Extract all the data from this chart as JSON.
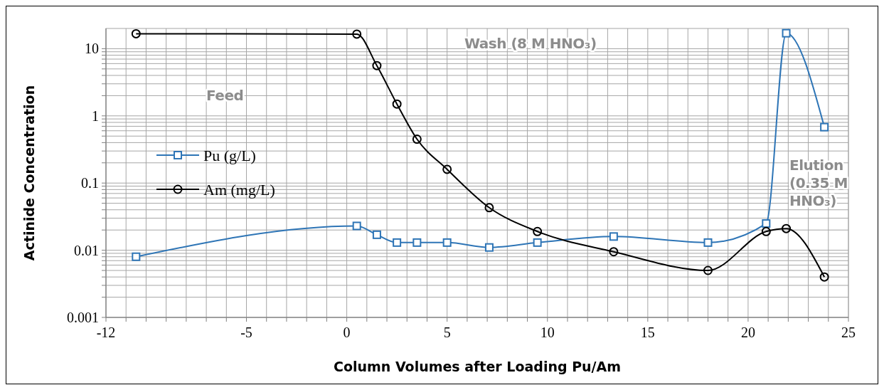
{
  "chart_data": {
    "type": "line",
    "xlabel": "Column Volumes after Loading Pu/Am",
    "ylabel": "Actinide Concentration",
    "xlim": [
      -12,
      25
    ],
    "xticks": [
      -12,
      {
        "value": -11,
        "label": null
      },
      {
        "value": -10,
        "label": null
      },
      {
        "value": -9,
        "label": null
      },
      {
        "value": -8,
        "label": null
      },
      {
        "value": -7,
        "label": null
      },
      {
        "value": -6,
        "label": null
      },
      -5,
      {
        "value": -4,
        "label": null
      },
      {
        "value": -3,
        "label": null
      },
      {
        "value": -2,
        "label": null
      },
      {
        "value": -1,
        "label": null
      },
      0,
      {
        "value": 1,
        "label": null
      },
      {
        "value": 2,
        "label": null
      },
      {
        "value": 3,
        "label": null
      },
      {
        "value": 4,
        "label": null
      },
      5,
      {
        "value": 6,
        "label": null
      },
      {
        "value": 7,
        "label": null
      },
      {
        "value": 8,
        "label": null
      },
      {
        "value": 9,
        "label": null
      },
      10,
      {
        "value": 11,
        "label": null
      },
      {
        "value": 12,
        "label": null
      },
      {
        "value": 13,
        "label": null
      },
      {
        "value": 14,
        "label": null
      },
      15,
      {
        "value": 16,
        "label": null
      },
      {
        "value": 17,
        "label": null
      },
      {
        "value": 18,
        "label": null
      },
      {
        "value": 19,
        "label": null
      },
      20,
      {
        "value": 21,
        "label": null
      },
      {
        "value": 22,
        "label": null
      },
      {
        "value": 23,
        "label": null
      },
      {
        "value": 24,
        "label": null
      },
      25
    ],
    "ylim": [
      0.001,
      20
    ],
    "yticks": [
      0.001,
      {
        "value": 0.002,
        "label": null
      },
      {
        "value": 0.003,
        "label": null
      },
      {
        "value": 0.004,
        "label": null
      },
      {
        "value": 0.005,
        "label": null
      },
      {
        "value": 0.006,
        "label": null
      },
      {
        "value": 0.007,
        "label": null
      },
      {
        "value": 0.008,
        "label": null
      },
      {
        "value": 0.009,
        "label": null
      },
      0.01,
      {
        "value": 0.02,
        "label": null
      },
      {
        "value": 0.03,
        "label": null
      },
      {
        "value": 0.04,
        "label": null
      },
      {
        "value": 0.05,
        "label": null
      },
      {
        "value": 0.06,
        "label": null
      },
      {
        "value": 0.07,
        "label": null
      },
      {
        "value": 0.08,
        "label": null
      },
      {
        "value": 0.09,
        "label": null
      },
      0.1,
      {
        "value": 0.2,
        "label": null
      },
      {
        "value": 0.3,
        "label": null
      },
      {
        "value": 0.4,
        "label": null
      },
      {
        "value": 0.5,
        "label": null
      },
      {
        "value": 0.6,
        "label": null
      },
      {
        "value": 0.7,
        "label": null
      },
      {
        "value": 0.8,
        "label": null
      },
      {
        "value": 0.9,
        "label": null
      },
      1,
      {
        "value": 2,
        "label": null
      },
      {
        "value": 3,
        "label": null
      },
      {
        "value": 4,
        "label": null
      },
      {
        "value": 5,
        "label": null
      },
      {
        "value": 6,
        "label": null
      },
      {
        "value": 7,
        "label": null
      },
      {
        "value": 8,
        "label": null
      },
      {
        "value": 9,
        "label": null
      },
      10
    ],
    "log": "y",
    "grid": true,
    "legend": "left",
    "series": [
      {
        "name": "Pu (g/L)",
        "color": "#2e75b6",
        "marker": "square",
        "x": [
          -10.5,
          0.5,
          1.5,
          2.5,
          3.5,
          5,
          7.1,
          9.5,
          13.3,
          18,
          20.9,
          21.9,
          23.8
        ],
        "values": [
          0.008,
          0.023,
          0.017,
          0.013,
          0.013,
          0.013,
          0.011,
          0.013,
          0.016,
          0.013,
          0.025,
          17,
          0.68
        ]
      },
      {
        "name": "Am (mg/L)",
        "color": "#000000",
        "marker": "circle",
        "x": [
          -10.5,
          0.5,
          1.5,
          2.5,
          3.5,
          5,
          7.1,
          9.5,
          13.3,
          18,
          20.9,
          21.9,
          23.8
        ],
        "values": [
          16.7,
          16.5,
          5.6,
          1.5,
          0.45,
          0.16,
          0.043,
          0.019,
          0.0095,
          0.005,
          0.019,
          0.021,
          0.004
        ]
      }
    ],
    "annotations": [
      "Feed",
      "Wash (8 M HNO₃)",
      "Elution\n(0.35 M\nHNO₃)"
    ]
  }
}
